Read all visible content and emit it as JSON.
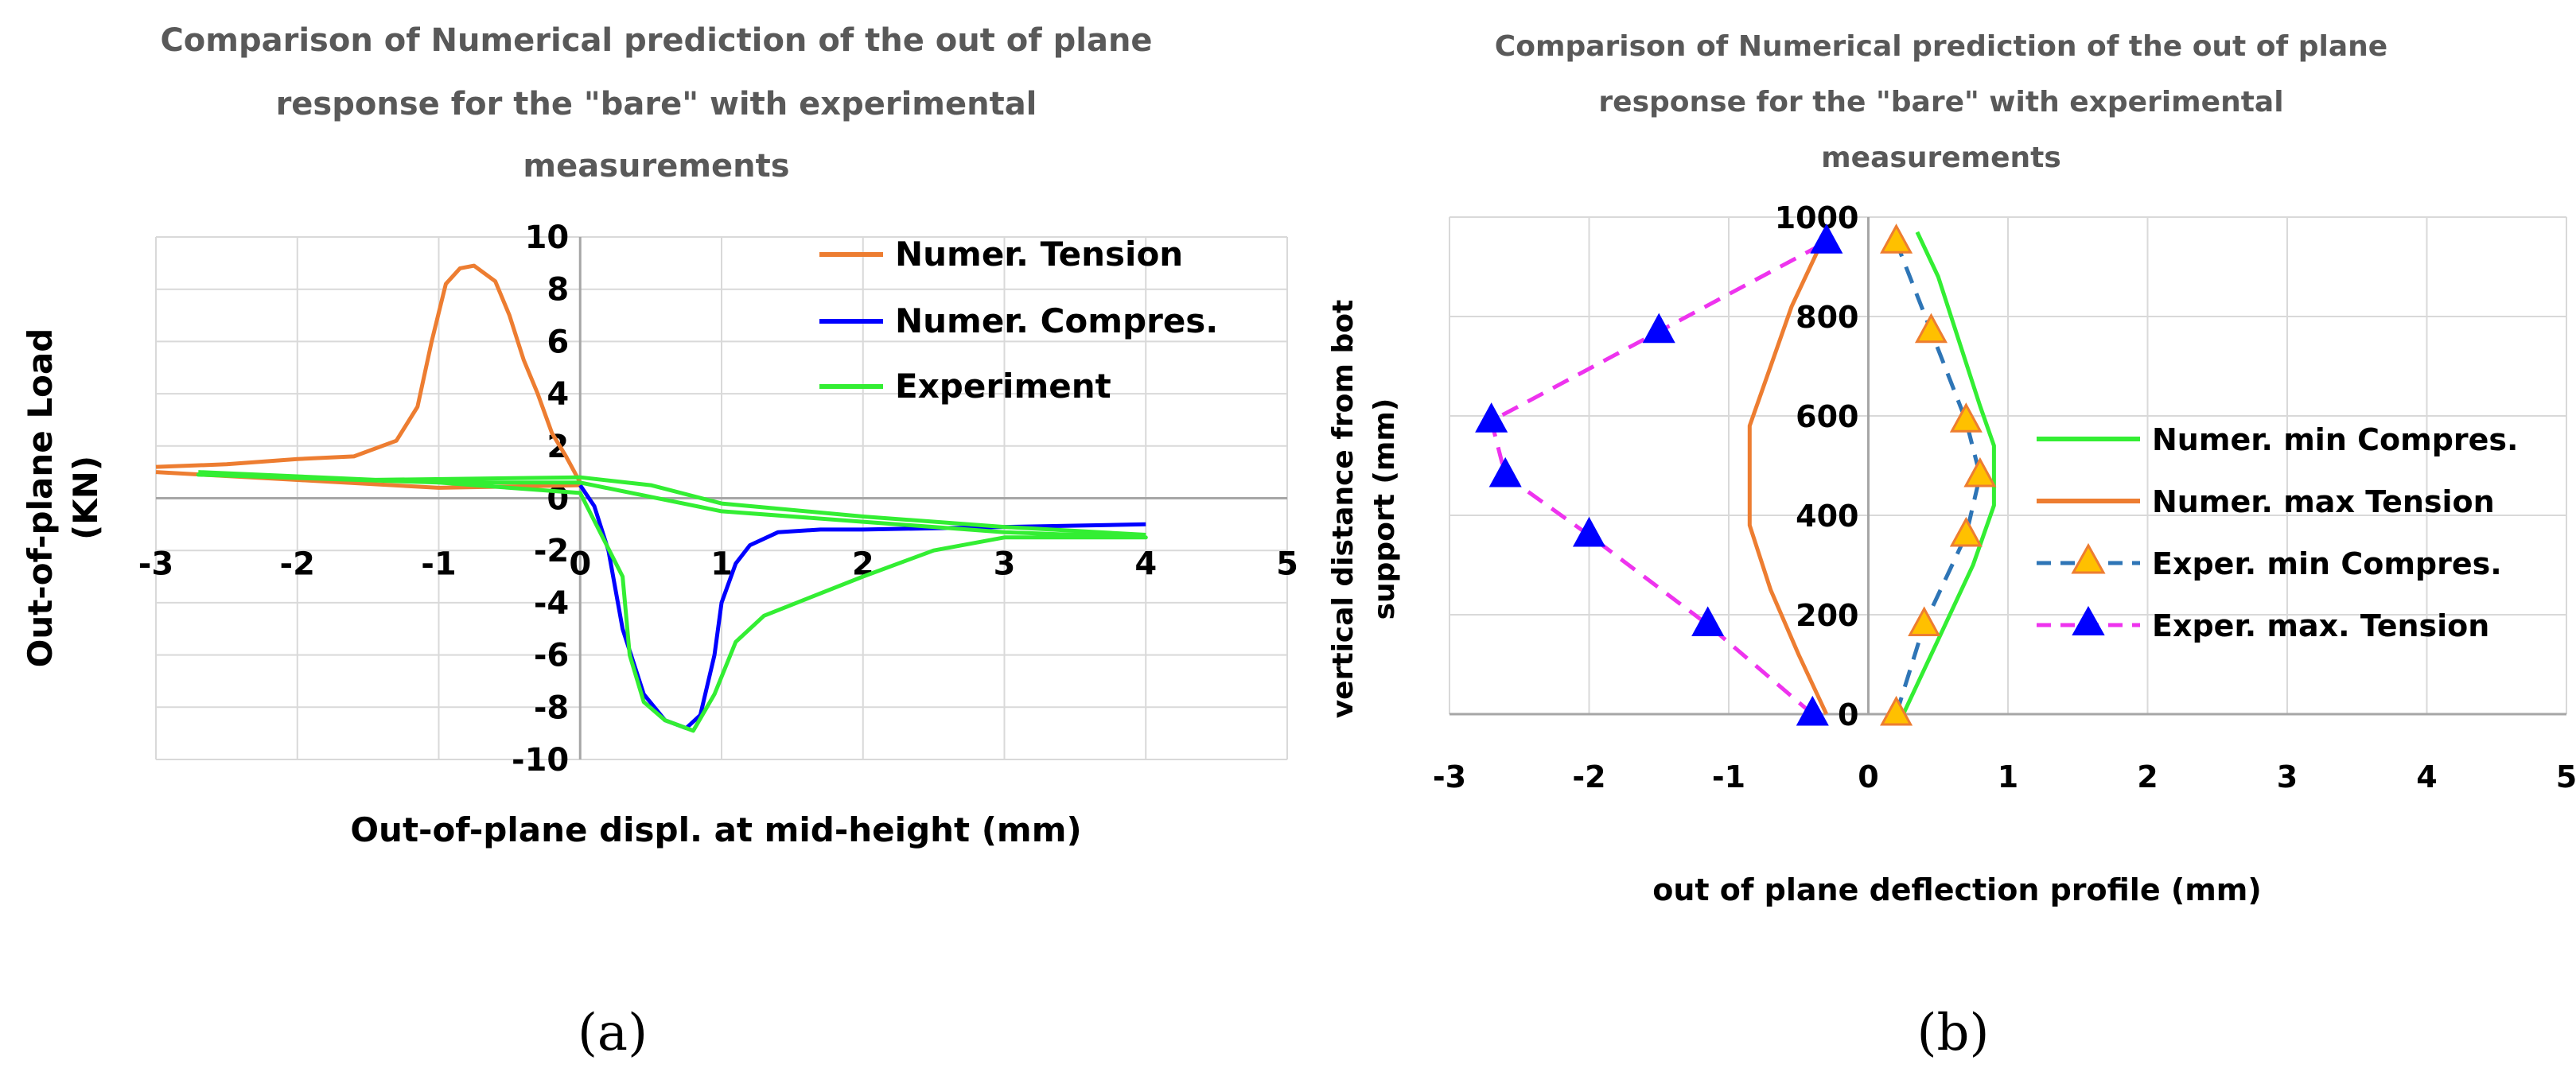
{
  "panels": {
    "a": "(a)",
    "b": "(b)"
  },
  "chart_data": [
    {
      "id": "a",
      "type": "line",
      "title_lines": [
        "Comparison of Numerical prediction of the out of plane",
        "response for the \"bare\" with experimental",
        "measurements"
      ],
      "xlabel": "Out-of-plane displ. at mid-height (mm)",
      "ylabel_lines": [
        "Out-of-plane Load",
        "(KN)"
      ],
      "xlim": [
        -3,
        5
      ],
      "ylim": [
        -10,
        10
      ],
      "x_ticks": [
        -3,
        -2,
        -1,
        0,
        1,
        2,
        3,
        4,
        5
      ],
      "y_ticks": [
        -10,
        -8,
        -6,
        -4,
        -2,
        0,
        2,
        4,
        6,
        8,
        10
      ],
      "grid": true,
      "legend_position": "top-right",
      "series": [
        {
          "name": "Numer. Tension",
          "color": "#ED7D31",
          "x": [
            -3.0,
            -2.5,
            -2.0,
            -1.6,
            -1.3,
            -1.15,
            -1.05,
            -0.95,
            -0.85,
            -0.75,
            -0.6,
            -0.5,
            -0.4,
            -0.3,
            -0.2,
            -0.1,
            0.0,
            0.0,
            -1.0,
            -2.0,
            -3.0
          ],
          "y": [
            1.2,
            1.3,
            1.5,
            1.6,
            2.2,
            3.5,
            6.0,
            8.2,
            8.8,
            8.9,
            8.3,
            7.0,
            5.3,
            4.0,
            2.5,
            1.6,
            0.6,
            0.5,
            0.4,
            0.7,
            1.0
          ]
        },
        {
          "name": "Numer. Compres.",
          "color": "#0000FF",
          "x": [
            0.0,
            0.1,
            0.2,
            0.3,
            0.45,
            0.6,
            0.75,
            0.85,
            0.95,
            1.0,
            1.1,
            1.2,
            1.4,
            1.7,
            2.0,
            3.0,
            4.0
          ],
          "y": [
            0.5,
            -0.3,
            -2.0,
            -5.0,
            -7.5,
            -8.5,
            -8.8,
            -8.3,
            -6.0,
            -4.0,
            -2.5,
            -1.8,
            -1.3,
            -1.2,
            -1.2,
            -1.1,
            -1.0
          ]
        },
        {
          "name": "Experiment",
          "color": "#33EE33",
          "x": [
            -2.7,
            -1.0,
            0.0,
            0.3,
            0.35,
            0.45,
            0.6,
            0.8,
            0.95,
            1.1,
            1.3,
            2.0,
            2.5,
            3.0,
            4.0,
            3.0,
            2.0,
            1.0,
            0.0,
            -1.0,
            -2.7,
            -1.5,
            0.0,
            0.5,
            1.0,
            2.0,
            3.0,
            4.0
          ],
          "y": [
            1.0,
            0.6,
            0.2,
            -3.0,
            -6.0,
            -7.8,
            -8.5,
            -8.9,
            -7.5,
            -5.5,
            -4.5,
            -3.0,
            -2.0,
            -1.5,
            -1.5,
            -1.3,
            -0.9,
            -0.5,
            0.6,
            0.6,
            0.9,
            0.7,
            0.8,
            0.5,
            -0.2,
            -0.7,
            -1.1,
            -1.4
          ]
        }
      ]
    },
    {
      "id": "b",
      "type": "line",
      "title_lines": [
        "Comparison of Numerical prediction of the out of plane",
        "response for the \"bare\" with experimental",
        "measurements"
      ],
      "xlabel": "out of plane deflection profile (mm)",
      "ylabel_lines": [
        "vertical distance from bot",
        "support (mm)"
      ],
      "xlim": [
        -3,
        5
      ],
      "ylim": [
        0,
        1000
      ],
      "x_ticks": [
        -3,
        -2,
        -1,
        0,
        1,
        2,
        3,
        4,
        5
      ],
      "y_ticks": [
        0,
        200,
        400,
        600,
        800,
        1000
      ],
      "grid": true,
      "legend_position": "right",
      "series": [
        {
          "name": "Numer. min Compres.",
          "color": "#33EE33",
          "dash": false,
          "marker": "none",
          "x": [
            0.25,
            0.5,
            0.75,
            0.9,
            0.9,
            0.8,
            0.65,
            0.5,
            0.35
          ],
          "y": [
            0,
            150,
            300,
            420,
            540,
            620,
            750,
            880,
            970
          ]
        },
        {
          "name": "Numer. max Tension",
          "color": "#ED7D31",
          "dash": false,
          "marker": "none",
          "x": [
            -0.3,
            -0.5,
            -0.7,
            -0.85,
            -0.85,
            -0.7,
            -0.55,
            -0.4,
            -0.3
          ],
          "y": [
            0,
            120,
            250,
            380,
            580,
            700,
            820,
            910,
            970
          ]
        },
        {
          "name": "Exper. min Compres.",
          "color": "#2E75B6",
          "dash": true,
          "marker": "yellow-triangle",
          "x": [
            0.2,
            0.4,
            0.7,
            0.8,
            0.7,
            0.45,
            0.2
          ],
          "y": [
            0,
            180,
            360,
            480,
            590,
            770,
            950
          ]
        },
        {
          "name": "Exper. max. Tension",
          "color": "#EE33EE",
          "dash": true,
          "marker": "blue-triangle",
          "x": [
            -0.4,
            -1.15,
            -2.0,
            -2.6,
            -2.7,
            -1.5,
            -0.3
          ],
          "y": [
            0,
            180,
            360,
            480,
            590,
            770,
            950
          ]
        }
      ]
    }
  ]
}
